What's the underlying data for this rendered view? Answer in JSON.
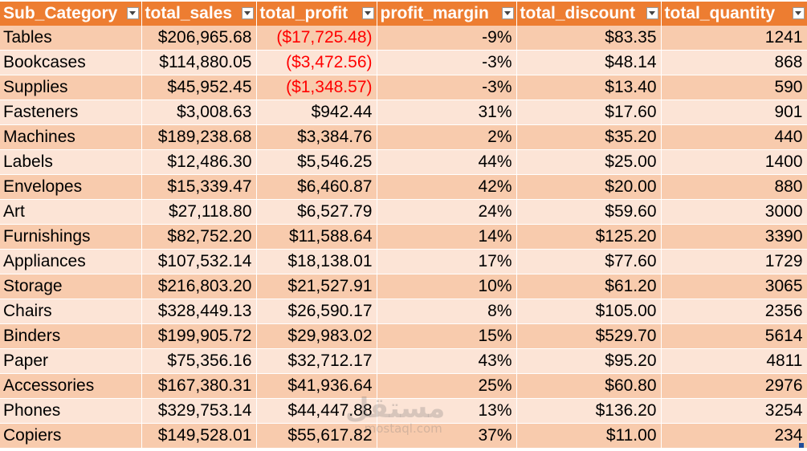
{
  "table": {
    "headers": [
      "Sub_Category",
      "total_sales",
      "total_profit",
      "profit_margin",
      "total_discount",
      "total_quantity"
    ],
    "rows": [
      [
        "Tables",
        "$206,965.68",
        "($17,725.48)",
        "-9%",
        "$83.35",
        "1241"
      ],
      [
        "Bookcases",
        "$114,880.05",
        "($3,472.56)",
        "-3%",
        "$48.14",
        "868"
      ],
      [
        "Supplies",
        "$45,952.45",
        "($1,348.57)",
        "-3%",
        "$13.40",
        "590"
      ],
      [
        "Fasteners",
        "$3,008.63",
        "$942.44",
        "31%",
        "$17.60",
        "901"
      ],
      [
        "Machines",
        "$189,238.68",
        "$3,384.76",
        "2%",
        "$35.20",
        "440"
      ],
      [
        "Labels",
        "$12,486.30",
        "$5,546.25",
        "44%",
        "$25.00",
        "1400"
      ],
      [
        "Envelopes",
        "$15,339.47",
        "$6,460.87",
        "42%",
        "$20.00",
        "880"
      ],
      [
        "Art",
        "$27,118.80",
        "$6,527.79",
        "24%",
        "$59.60",
        "3000"
      ],
      [
        "Furnishings",
        "$82,752.20",
        "$11,588.64",
        "14%",
        "$125.20",
        "3390"
      ],
      [
        "Appliances",
        "$107,532.14",
        "$18,138.01",
        "17%",
        "$77.60",
        "1729"
      ],
      [
        "Storage",
        "$216,803.20",
        "$21,527.91",
        "10%",
        "$61.20",
        "3065"
      ],
      [
        "Chairs",
        "$328,449.13",
        "$26,590.17",
        "8%",
        "$105.00",
        "2356"
      ],
      [
        "Binders",
        "$199,905.72",
        "$29,983.02",
        "15%",
        "$529.70",
        "5614"
      ],
      [
        "Paper",
        "$75,356.16",
        "$32,712.17",
        "43%",
        "$95.20",
        "4811"
      ],
      [
        "Accessories",
        "$167,380.31",
        "$41,936.64",
        "25%",
        "$60.80",
        "2976"
      ],
      [
        "Phones",
        "$329,753.14",
        "$44,447.88",
        "13%",
        "$136.20",
        "3254"
      ],
      [
        "Copiers",
        "$149,528.01",
        "$55,617.82",
        "37%",
        "$11.00",
        "234"
      ]
    ],
    "negative_profit_rows": [
      0,
      1,
      2
    ]
  },
  "watermark": {
    "main": "مستقل",
    "sub": "mostaql.com"
  },
  "colors": {
    "header_bg": "#ED7D31",
    "band_dark": "#F8CBAD",
    "band_light": "#FCE4D6",
    "negative_text": "#FF0000"
  },
  "icons": {
    "filter": "filter-dropdown-icon"
  }
}
